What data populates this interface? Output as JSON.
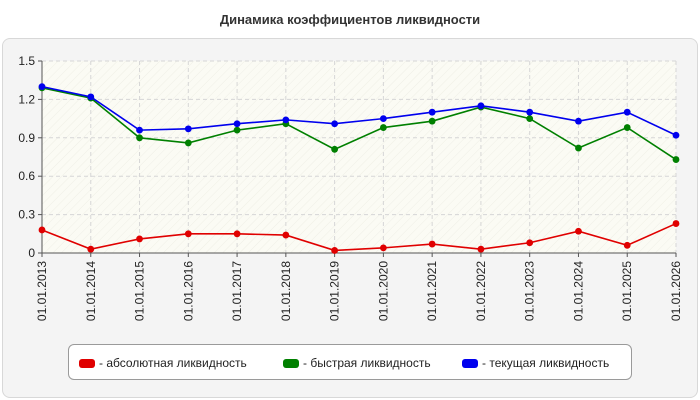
{
  "chart_data": {
    "type": "line",
    "title": "Динамика коэффициентов ликвидности",
    "x": [
      "01.01.2013",
      "01.01.2014",
      "01.01.2015",
      "01.01.2016",
      "01.01.2017",
      "01.01.2018",
      "01.01.2019",
      "01.01.2020",
      "01.01.2021",
      "01.01.2022",
      "01.01.2023",
      "01.01.2024",
      "01.01.2025",
      "01.01.2026"
    ],
    "yticks": [
      "0",
      "0.3",
      "0.6",
      "0.9",
      "1.2",
      "1.5"
    ],
    "ylim": [
      0,
      1.5
    ],
    "grid": true,
    "legend_position": "bottom",
    "series": [
      {
        "name": "- абсолютная ликвидность",
        "color": "#e00000",
        "values": [
          0.18,
          0.03,
          0.11,
          0.15,
          0.15,
          0.14,
          0.02,
          0.04,
          0.07,
          0.03,
          0.08,
          0.17,
          0.06,
          0.23
        ]
      },
      {
        "name": "- быстрая ликвидность",
        "color": "#008000",
        "values": [
          1.29,
          1.21,
          0.9,
          0.86,
          0.96,
          1.01,
          0.81,
          0.98,
          1.03,
          1.14,
          1.05,
          0.82,
          0.98,
          0.73
        ]
      },
      {
        "name": "- текущая ликвидность",
        "color": "#0000ee",
        "values": [
          1.3,
          1.22,
          0.96,
          0.97,
          1.01,
          1.04,
          1.01,
          1.05,
          1.1,
          1.15,
          1.1,
          1.03,
          1.1,
          0.92
        ]
      }
    ]
  }
}
